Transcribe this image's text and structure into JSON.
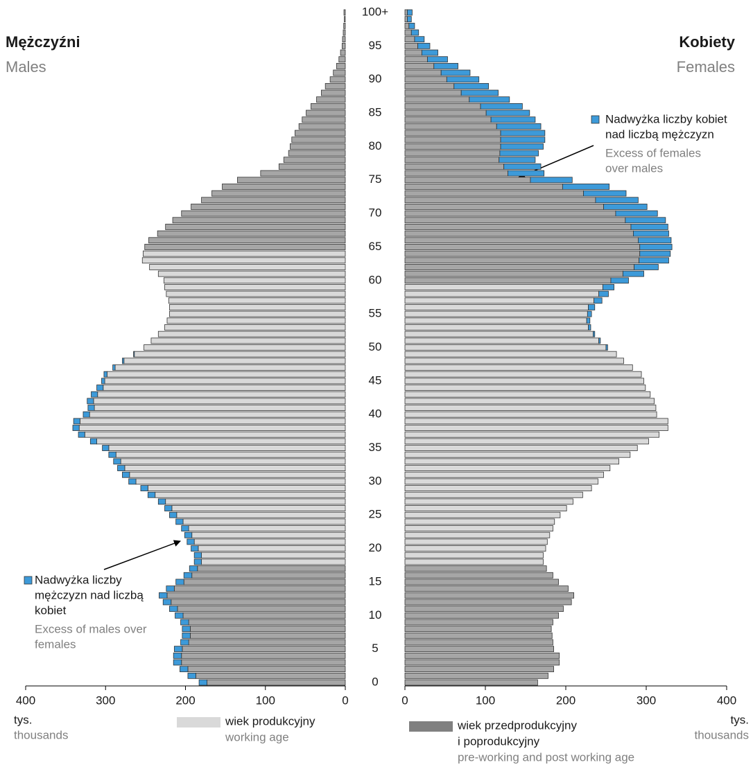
{
  "chart_data": {
    "type": "population_pyramid",
    "categories": [
      "0",
      null,
      null,
      null,
      null,
      "5",
      null,
      null,
      null,
      null,
      "10",
      null,
      null,
      null,
      null,
      "15",
      null,
      null,
      null,
      null,
      "20",
      null,
      null,
      null,
      null,
      "25",
      null,
      null,
      null,
      null,
      "30",
      null,
      null,
      null,
      null,
      "35",
      null,
      null,
      null,
      null,
      "40",
      null,
      null,
      null,
      null,
      "45",
      null,
      null,
      null,
      null,
      "50",
      null,
      null,
      null,
      null,
      "55",
      null,
      null,
      null,
      null,
      "60",
      null,
      null,
      null,
      null,
      "65",
      null,
      null,
      null,
      null,
      "70",
      null,
      null,
      null,
      null,
      "75",
      null,
      null,
      null,
      null,
      "80",
      null,
      null,
      null,
      null,
      "85",
      null,
      null,
      null,
      null,
      "90",
      null,
      null,
      null,
      null,
      "95",
      null,
      null,
      null,
      null,
      "100+"
    ],
    "xlim": [
      0,
      400
    ],
    "xticks": [
      0,
      100,
      200,
      300,
      400
    ],
    "males": {
      "title": "Mężczyźni",
      "subtitle": "Males",
      "series": [
        {
          "color": "#a6a6a6",
          "values": [
            173,
            187,
            197,
            205,
            205,
            204,
            196,
            194,
            194,
            196,
            203,
            210,
            218,
            223,
            214,
            202,
            192,
            185,
            null,
            null,
            null,
            null,
            null,
            null,
            null,
            null,
            null,
            null,
            null,
            null,
            null,
            null,
            null,
            null,
            null,
            null,
            null,
            null,
            null,
            null,
            null,
            null,
            null,
            null,
            null,
            null,
            null,
            null,
            null,
            null,
            null,
            null,
            null,
            null,
            null,
            null,
            null,
            null,
            null,
            null,
            null,
            null,
            null,
            null,
            null,
            251,
            246,
            235,
            225,
            216,
            205,
            193,
            180,
            167,
            154,
            135,
            106,
            83,
            77,
            71,
            69,
            67,
            63,
            58,
            54,
            49,
            43,
            36,
            30,
            25,
            19,
            15,
            11,
            8,
            6,
            4,
            3.5,
            2.6,
            2,
            1.3,
            1.7
          ]
        },
        {
          "color": "#d9d9d9",
          "values": [
            null,
            null,
            null,
            null,
            null,
            null,
            null,
            null,
            null,
            null,
            null,
            null,
            null,
            null,
            null,
            null,
            null,
            null,
            180,
            180,
            184,
            189,
            192,
            196,
            203,
            211,
            217,
            225,
            238,
            247,
            262,
            270,
            276,
            281,
            287,
            296,
            311,
            326,
            333,
            332,
            320,
            314,
            315,
            310,
            303,
            301,
            298,
            288,
            277,
            264,
            252,
            243,
            234,
            226,
            223,
            220,
            220,
            221,
            224,
            226,
            227,
            234,
            245,
            254,
            253,
            null,
            null,
            null,
            null,
            null,
            null,
            null,
            null,
            null,
            null,
            null,
            null,
            null,
            null,
            null,
            null,
            null,
            null,
            null,
            null,
            null,
            null,
            null,
            null,
            null,
            null,
            null,
            null,
            null,
            null,
            null,
            null,
            null,
            null,
            null,
            null
          ]
        },
        {
          "color": "#3d9ad9",
          "values": [
            10,
            10,
            10,
            10,
            10,
            10,
            10,
            10,
            10,
            10,
            10,
            10,
            10,
            10,
            10,
            10,
            10,
            10,
            9,
            9,
            9,
            9,
            9,
            9,
            9,
            9,
            9,
            9,
            9,
            9,
            9,
            9,
            9,
            9,
            9,
            8,
            8,
            8,
            8,
            8,
            8,
            8,
            8,
            8,
            8,
            4,
            4,
            3,
            2,
            1,
            null,
            null,
            null,
            null,
            null,
            null,
            null,
            null,
            null,
            null,
            null,
            null,
            null,
            null,
            null,
            null,
            null,
            null,
            null,
            null,
            null,
            null,
            null,
            null,
            null,
            null,
            null,
            null,
            null,
            null,
            null,
            null,
            null,
            null,
            null,
            null,
            null,
            null,
            null,
            null,
            null,
            null,
            null,
            null,
            null,
            null,
            null,
            null,
            null,
            null,
            null
          ]
        }
      ]
    },
    "females": {
      "title": "Kobiety",
      "subtitle": "Females",
      "series": [
        {
          "color": "#a6a6a6",
          "values": [
            165,
            178,
            185,
            192,
            192,
            185,
            184,
            183,
            182,
            184,
            191,
            197,
            207,
            210,
            203,
            191,
            184,
            176,
            null,
            null,
            null,
            null,
            null,
            null,
            null,
            null,
            null,
            null,
            null,
            null,
            null,
            null,
            null,
            null,
            null,
            null,
            null,
            null,
            null,
            null,
            null,
            null,
            null,
            null,
            null,
            null,
            null,
            null,
            null,
            null,
            null,
            null,
            null,
            null,
            null,
            null,
            null,
            null,
            null,
            null,
            256,
            271,
            285,
            291,
            292,
            292,
            290,
            284,
            281,
            274,
            262,
            247,
            237,
            222,
            196,
            156,
            128,
            123,
            117,
            118,
            119,
            119,
            119,
            114,
            107,
            101,
            94,
            80,
            70,
            61,
            52,
            45,
            36,
            28,
            21,
            16,
            12,
            8,
            5,
            3,
            3
          ]
        },
        {
          "color": "#d9d9d9",
          "values": [
            null,
            null,
            null,
            null,
            null,
            null,
            null,
            null,
            null,
            null,
            null,
            null,
            null,
            null,
            null,
            null,
            null,
            null,
            172,
            172,
            175,
            177,
            180,
            184,
            186,
            193,
            201,
            209,
            221,
            232,
            240,
            247,
            255,
            266,
            280,
            289,
            303,
            316,
            327,
            327,
            313,
            312,
            310,
            305,
            299,
            297,
            294,
            283,
            272,
            263,
            250,
            241,
            234,
            228,
            226,
            227,
            228,
            235,
            241,
            246,
            null,
            null,
            null,
            null,
            null,
            null,
            null,
            null,
            null,
            null,
            null,
            null,
            null,
            null,
            null,
            null,
            null,
            null,
            null,
            null,
            null,
            null,
            null,
            null,
            null,
            null,
            null,
            null,
            null,
            null,
            null,
            null,
            null,
            null,
            null,
            null,
            null,
            null,
            null,
            null,
            null
          ]
        },
        {
          "color": "#3d9ad9",
          "values": [
            null,
            null,
            null,
            null,
            null,
            null,
            null,
            null,
            null,
            null,
            null,
            null,
            null,
            null,
            null,
            null,
            null,
            null,
            null,
            null,
            null,
            null,
            null,
            null,
            null,
            null,
            null,
            null,
            null,
            null,
            null,
            null,
            null,
            null,
            null,
            null,
            null,
            null,
            null,
            null,
            null,
            null,
            null,
            null,
            null,
            null,
            null,
            null,
            null,
            null,
            2,
            2,
            2,
            3,
            4,
            5,
            8,
            10,
            12,
            14,
            22,
            26,
            30,
            37,
            38,
            40,
            41,
            44,
            46,
            50,
            52,
            54,
            53,
            53,
            58,
            52,
            45,
            46,
            45,
            48,
            53,
            55,
            55,
            55,
            55,
            54,
            52,
            50,
            46,
            43,
            40,
            36,
            30,
            25,
            20,
            15,
            12,
            9,
            7,
            5,
            6
          ]
        }
      ]
    },
    "annotations": [
      {
        "lines": [
          "Nadwyżka liczby",
          "mężczyzn nad liczbą",
          "kobiet"
        ],
        "sublines": [
          "Excess of males over",
          "females"
        ],
        "color": "#3d9ad9"
      },
      {
        "lines": [
          "Nadwyżka liczby kobiet",
          "nad liczbą mężczyzn"
        ],
        "sublines": [
          "Excess of females",
          "over males"
        ],
        "color": "#3d9ad9"
      }
    ],
    "unit": {
      "label": "tys.",
      "sublabel": "thousands"
    },
    "legend": [
      {
        "lines": [
          "wiek produkcyjny"
        ],
        "sublines": [
          "working age"
        ],
        "color": "#d9d9d9"
      },
      {
        "lines": [
          "wiek przedprodukcyjny",
          "i poprodukcyjny"
        ],
        "sublines": [
          "pre-working and post working age"
        ],
        "color": "#808080"
      }
    ]
  }
}
